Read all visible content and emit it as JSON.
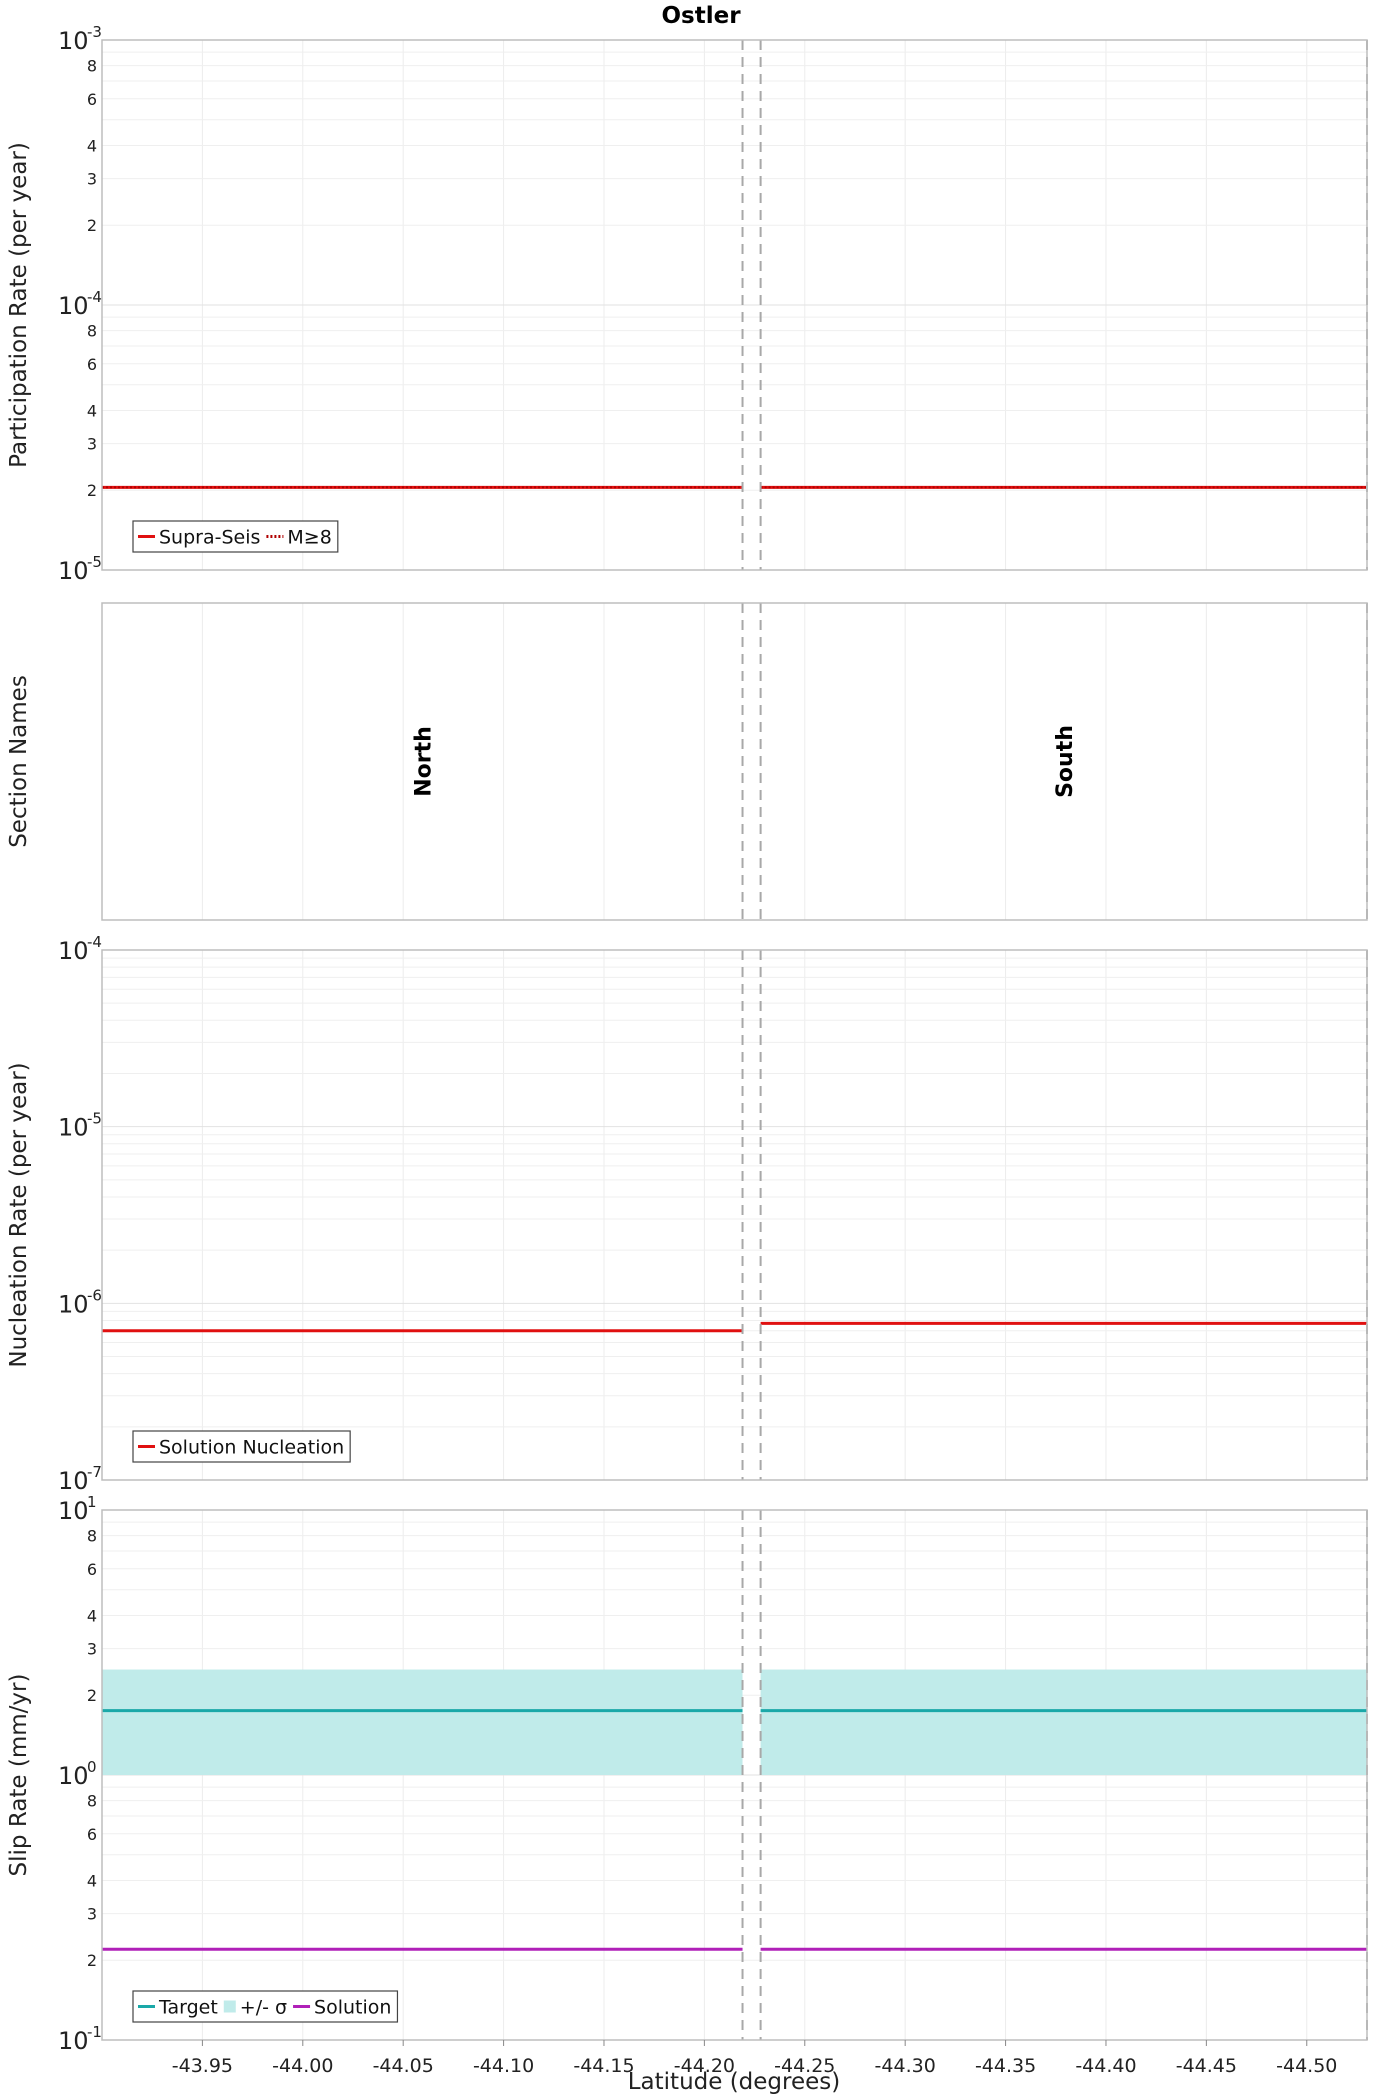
{
  "chart_data": {
    "title": "Ostler",
    "xlabel": "Latitude (degrees)",
    "x_ticks": [
      -43.95,
      -44.0,
      -44.05,
      -44.1,
      -44.15,
      -44.2,
      -44.25,
      -44.3,
      -44.35,
      -44.4,
      -44.45,
      -44.5
    ],
    "x_tick_labels": [
      "-43.95",
      "-44.00",
      "-44.05",
      "-44.10",
      "-44.15",
      "-44.20",
      "-44.25",
      "-44.30",
      "-44.35",
      "-44.40",
      "-44.45",
      "-44.50"
    ],
    "xlim": [
      -43.9,
      -44.53
    ],
    "section_boundaries": [
      -44.219,
      -44.228,
      -44.53
    ],
    "sections": [
      {
        "name": "North",
        "x0": -43.9,
        "x1": -44.219
      },
      {
        "name": "South",
        "x0": -44.228,
        "x1": -44.53
      }
    ],
    "panels": [
      {
        "type": "line",
        "ylabel": "Participation Rate (per year)",
        "yscale": "log",
        "ylim": [
          1e-05,
          0.001
        ],
        "decade_labels": [
          {
            "v": 0.001,
            "exp": "-3"
          },
          {
            "v": 0.0001,
            "exp": "-4"
          },
          {
            "v": 1e-05,
            "exp": "-5"
          }
        ],
        "minor_labels": [
          8,
          6,
          4,
          3,
          2
        ],
        "series": [
          {
            "name": "Supra-Seis",
            "color": "#e01010",
            "style": "solid",
            "segments": [
              [
                -43.9,
                -44.219,
                2.05e-05
              ],
              [
                -44.228,
                -44.53,
                2.05e-05
              ]
            ]
          },
          {
            "name": "M≥8",
            "color": "#e01010",
            "style": "dotted",
            "segments": [
              [
                -43.9,
                -44.219,
                2.05e-05
              ],
              [
                -44.228,
                -44.53,
                2.05e-05
              ]
            ]
          }
        ],
        "legend": {
          "position": "bottom-left",
          "items": [
            {
              "label": "Supra-Seis",
              "type": "line",
              "color": "#e01010"
            },
            {
              "label": "M≥8",
              "type": "dotted",
              "color": "#e01010"
            }
          ]
        }
      },
      {
        "type": "section_names",
        "ylabel": "Section Names"
      },
      {
        "type": "line",
        "ylabel": "Nucleation Rate (per year)",
        "yscale": "log",
        "ylim": [
          1e-07,
          0.0001
        ],
        "decade_labels": [
          {
            "v": 0.0001,
            "exp": "-4"
          },
          {
            "v": 1e-05,
            "exp": "-5"
          },
          {
            "v": 1e-06,
            "exp": "-6"
          },
          {
            "v": 1e-07,
            "exp": "-7"
          }
        ],
        "minor_labels": [],
        "series": [
          {
            "name": "Solution Nucleation",
            "color": "#e01010",
            "style": "solid",
            "segments": [
              [
                -43.9,
                -44.219,
                7e-07
              ],
              [
                -44.228,
                -44.53,
                7.7e-07
              ]
            ]
          }
        ],
        "legend": {
          "position": "bottom-left",
          "items": [
            {
              "label": "Solution Nucleation",
              "type": "line",
              "color": "#e01010"
            }
          ]
        }
      },
      {
        "type": "line",
        "ylabel": "Slip Rate (mm/yr)",
        "yscale": "log",
        "ylim": [
          0.1,
          10
        ],
        "decade_labels": [
          {
            "v": 10,
            "exp": "1"
          },
          {
            "v": 1,
            "exp": "0"
          },
          {
            "v": 0.1,
            "exp": "-1"
          }
        ],
        "minor_labels": [
          8,
          6,
          4,
          3,
          2
        ],
        "bands": [
          {
            "name": "+/- σ",
            "color": "#c0ebea",
            "segments": [
              [
                -43.9,
                -44.219,
                1.0,
                2.5
              ],
              [
                -44.228,
                -44.53,
                1.0,
                2.5
              ]
            ]
          }
        ],
        "series": [
          {
            "name": "Target",
            "color": "#1aa8a8",
            "style": "solid",
            "segments": [
              [
                -43.9,
                -44.219,
                1.75
              ],
              [
                -44.228,
                -44.53,
                1.75
              ]
            ]
          },
          {
            "name": "Solution",
            "color": "#b020b8",
            "style": "solid",
            "segments": [
              [
                -43.9,
                -44.219,
                0.22
              ],
              [
                -44.228,
                -44.53,
                0.22
              ]
            ]
          }
        ],
        "legend": {
          "position": "bottom-left",
          "items": [
            {
              "label": "Target",
              "type": "line",
              "color": "#1aa8a8"
            },
            {
              "label": "+/- σ",
              "type": "box",
              "color": "#c0ebea"
            },
            {
              "label": "Solution",
              "type": "line",
              "color": "#b020b8"
            }
          ]
        }
      }
    ]
  }
}
